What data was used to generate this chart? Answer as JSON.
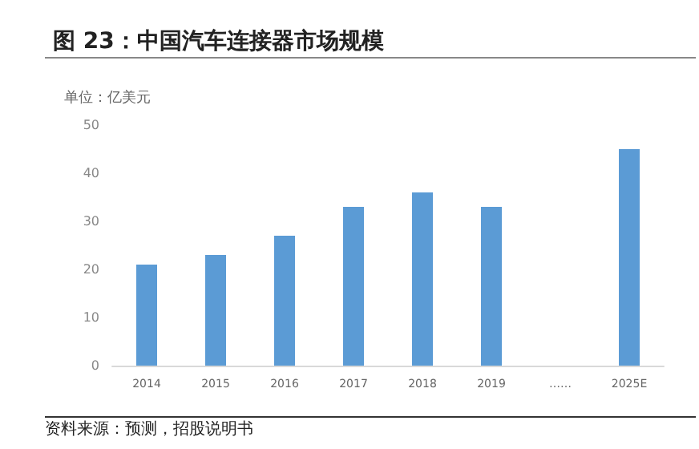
{
  "chart_data": {
    "type": "bar",
    "title": "图 23：中国汽车连接器市场规模",
    "ylabel": "单位：亿美元",
    "categories": [
      "2014",
      "2015",
      "2016",
      "2017",
      "2018",
      "2019",
      "……",
      "2025E"
    ],
    "values": [
      21,
      23,
      27,
      33,
      36,
      33,
      null,
      45
    ],
    "color": "#5b9bd5",
    "ylim": [
      0,
      50
    ],
    "yticks": [
      0,
      10,
      20,
      30,
      40,
      50
    ],
    "grid": false,
    "annotations": [
      "资料来源：预测，招股说明书"
    ]
  }
}
